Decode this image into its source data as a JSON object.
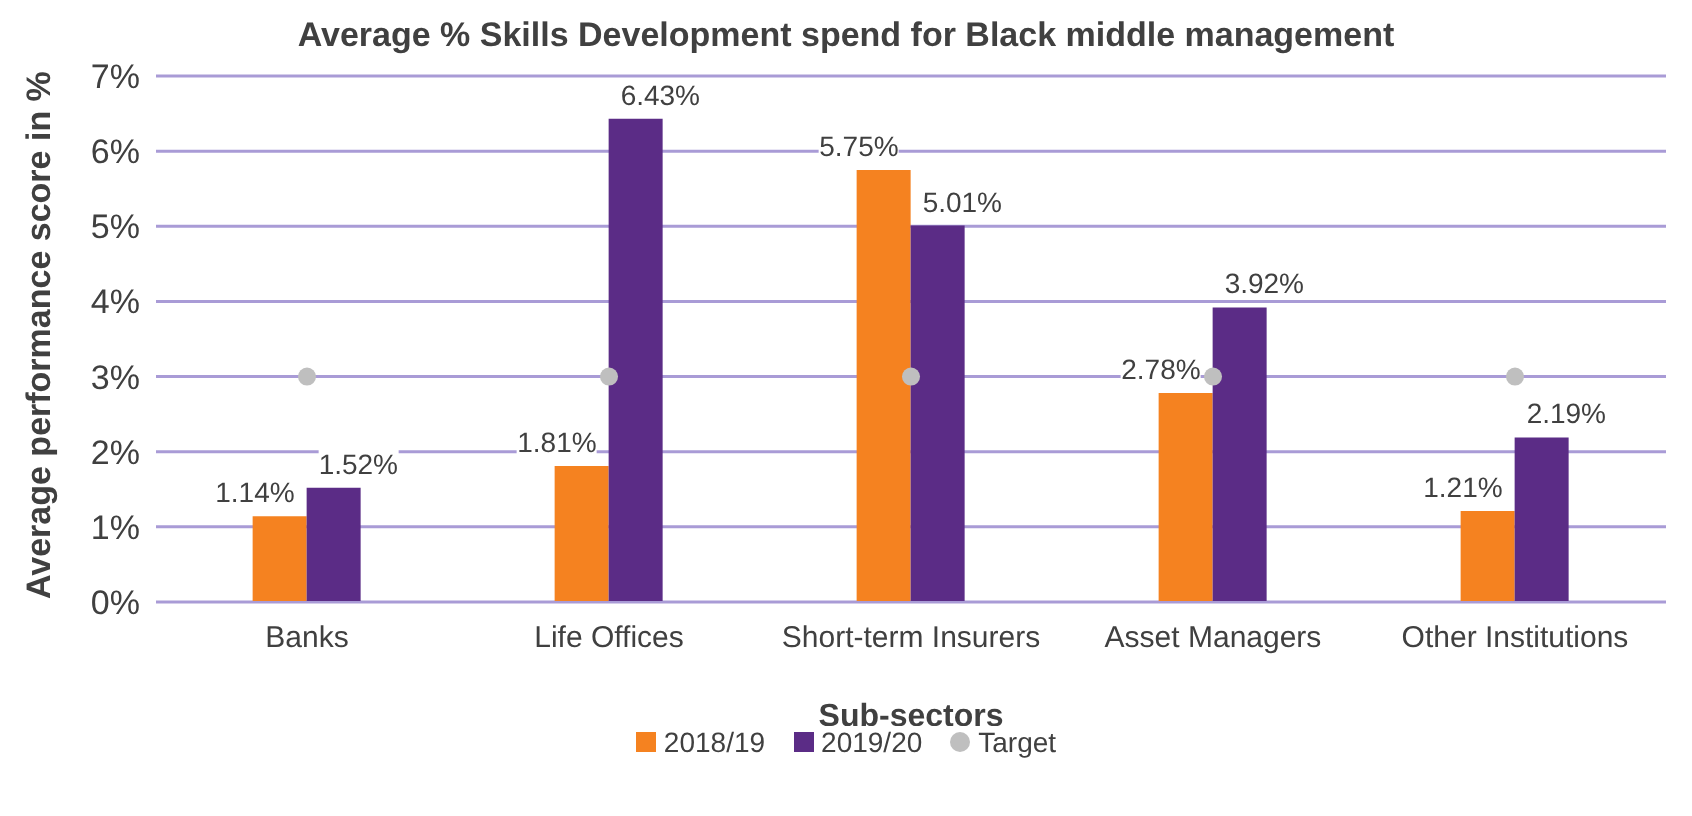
{
  "chart_data": {
    "type": "bar",
    "title": "Average % Skills Development spend for Black middle management",
    "xlabel": "Sub-sectors",
    "ylabel": "Average performance score in %",
    "categories": [
      "Banks",
      "Life Offices",
      "Short-term Insurers",
      "Asset Managers",
      "Other Institutions"
    ],
    "series": [
      {
        "name": "2018/19",
        "color": "#f58220",
        "values": [
          1.14,
          1.81,
          5.75,
          2.78,
          1.21
        ],
        "value_labels": [
          "1.14%",
          "1.81%",
          "5.75%",
          "2.78%",
          "1.21%"
        ]
      },
      {
        "name": "2019/20",
        "color": "#5b2c86",
        "values": [
          1.52,
          6.43,
          5.01,
          3.92,
          2.19
        ],
        "value_labels": [
          "1.52%",
          "6.43%",
          "5.01%",
          "3.92%",
          "2.19%"
        ]
      },
      {
        "name": "Target",
        "type": "scatter",
        "color": "#bfbfbf",
        "marker": "circle",
        "values": [
          3,
          3,
          3,
          3,
          3
        ]
      }
    ],
    "ylim": [
      0,
      7
    ],
    "yticks": [
      {
        "value": 0,
        "label": "0%"
      },
      {
        "value": 1,
        "label": "1%"
      },
      {
        "value": 2,
        "label": "2%"
      },
      {
        "value": 3,
        "label": "3%"
      },
      {
        "value": 4,
        "label": "4%"
      },
      {
        "value": 5,
        "label": "5%"
      },
      {
        "value": 6,
        "label": "6%"
      },
      {
        "value": 7,
        "label": "7%"
      }
    ],
    "grid": "y",
    "legend": "bottom"
  }
}
